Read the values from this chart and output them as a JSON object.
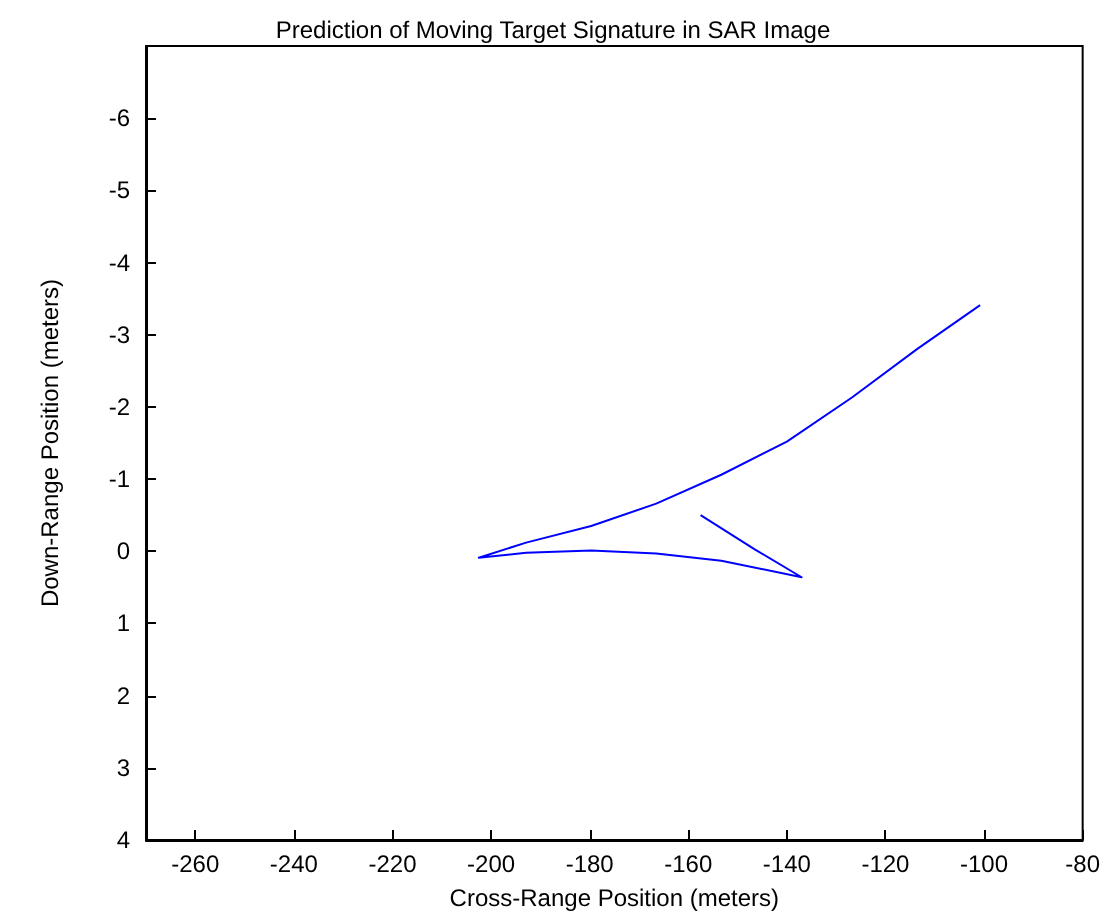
{
  "chart_data": {
    "type": "line",
    "title": "Prediction of Moving Target Signature in SAR Image",
    "xlabel": "Cross-Range Position (meters)",
    "ylabel": "Down-Range Position (meters)",
    "x": [
      -100.8,
      -113.6,
      -126.8,
      -140.0,
      -153.3,
      -166.5,
      -179.7,
      -192.9,
      -202.5,
      -192.9,
      -179.7,
      -166.5,
      -153.3,
      -137.0,
      -146.6,
      -157.5
    ],
    "series": [
      {
        "color": "#0000ff",
        "values": [
          -3.41,
          -2.8,
          -2.13,
          -1.52,
          -1.06,
          -0.66,
          -0.35,
          -0.12,
          0.09,
          0.02,
          -0.01,
          0.03,
          0.13,
          0.36,
          -0.03,
          -0.5
        ]
      }
    ],
    "xlim": [
      -270,
      -80
    ],
    "xticks": [
      -260,
      -240,
      -220,
      -200,
      -180,
      -160,
      -140,
      -120,
      -100,
      -80
    ],
    "ylim": [
      4,
      -7
    ],
    "yticks": [
      -6,
      -5,
      -4,
      -3,
      -2,
      -1,
      0,
      1,
      2,
      3,
      4
    ],
    "marker": "none",
    "line_style": "solid"
  }
}
